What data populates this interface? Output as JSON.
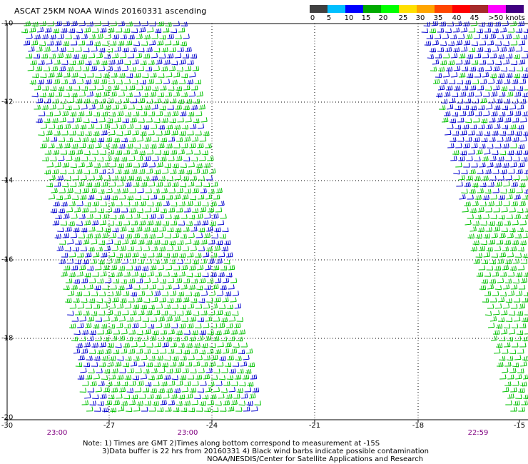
{
  "title": "ASCAT 25KM NOAA Winds 20160331 ascending",
  "legend": {
    "colors": [
      "#404040",
      "#909090",
      "#00bfff",
      "#0000ff",
      "#00aa00",
      "#00ff00",
      "#ffe000",
      "#ffa500",
      "#ff4500",
      "#ff0000",
      "#a52a2a",
      "#ff00ff",
      "#8000c0",
      "#400080"
    ],
    "labels": [
      "0",
      "5",
      "10",
      "15",
      "20",
      "25",
      "30",
      "35",
      "40",
      "45",
      ">50 knots"
    ]
  },
  "y_axis": {
    "labels": [
      "-10",
      "-12",
      "-14",
      "-16",
      "-18",
      "-20"
    ]
  },
  "x_axis": {
    "labels": [
      "-30",
      "-27",
      "-24",
      "-21",
      "-18",
      "-15"
    ]
  },
  "time_labels": [
    "23:00",
    "23:00",
    "22:59"
  ],
  "notes": {
    "line1": "Note: 1) Times are GMT 2)Times along bottom correspond to measurement at -15S",
    "line2": "3)Data buffer is 22 hrs from 20160331 4) Black wind barbs indicate possible contamination",
    "line3": "NOAA/NESDIS/Center for Satellite Applications and Research"
  },
  "colors": {
    "grid": "#000000",
    "time_label": "#800080",
    "wind_blue": "#0000cc",
    "wind_green": "#00c000"
  }
}
